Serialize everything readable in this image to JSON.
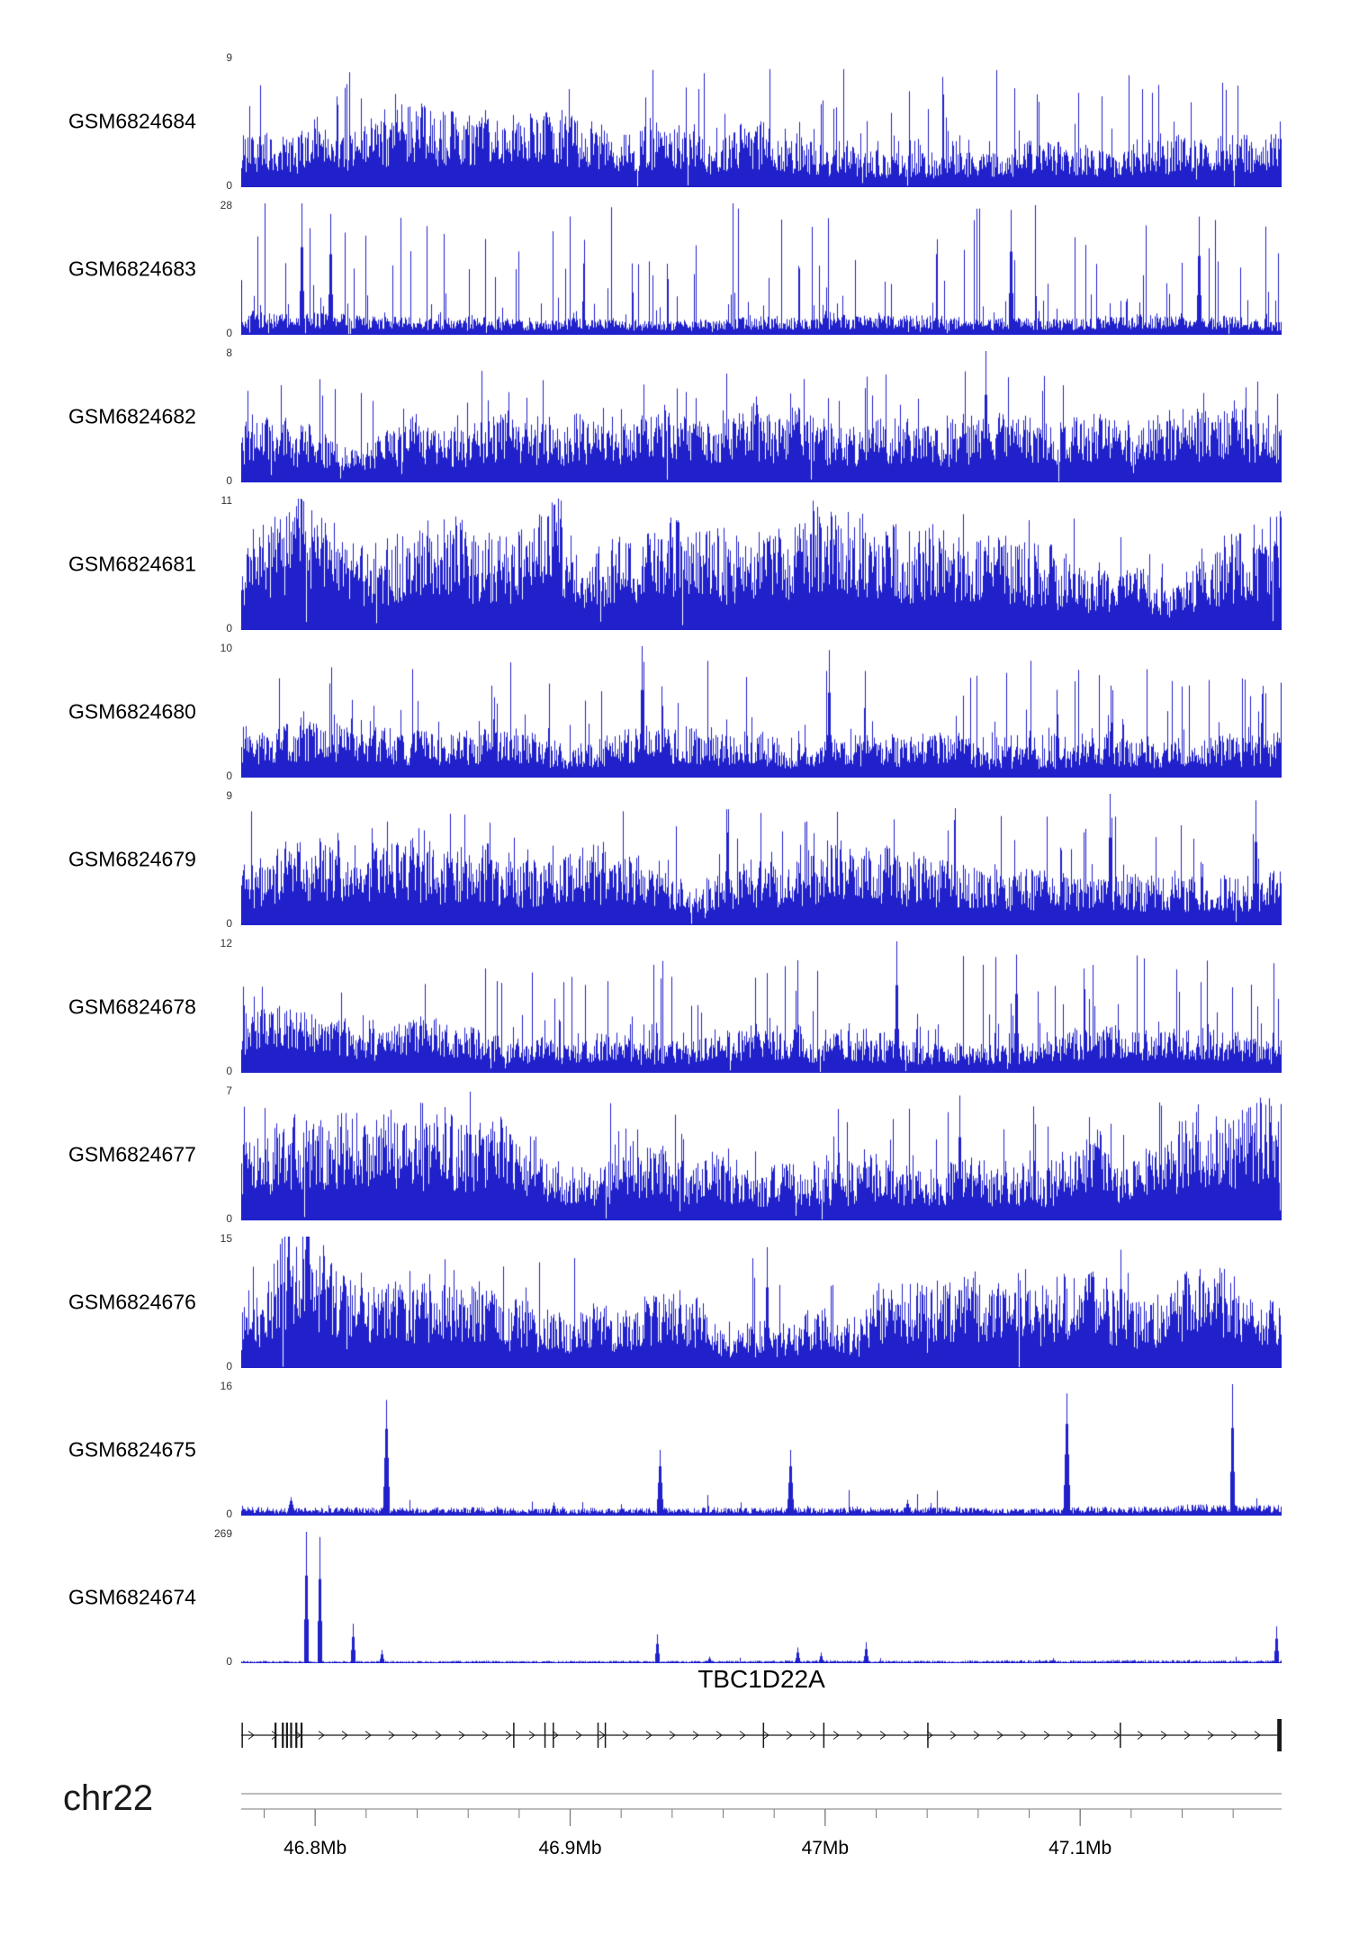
{
  "figure": {
    "background": "#FFFFFF",
    "track_color": "#2121CC",
    "gene_color": "#1A1A1A",
    "axis_line_color": "#7A7A7A",
    "text_color": "#000000",
    "yaxis_label_color": "#333333"
  },
  "chart_data": {
    "type": "area",
    "subtype": "genome-coverage-tracks",
    "title": "",
    "chromosome_label": "chr22",
    "x_axis": {
      "units": "Mb",
      "range_mb": [
        46.771,
        47.179
      ],
      "ticks": [
        {
          "label": "46.8Mb",
          "mb": 46.8
        },
        {
          "label": "46.9Mb",
          "mb": 46.9
        },
        {
          "label": "47Mb",
          "mb": 47.0
        },
        {
          "label": "47.1Mb",
          "mb": 47.1
        }
      ],
      "minor_tick_step_mb": 0.02
    },
    "gene_track": {
      "gene_name": "TBC1D22A",
      "strand": "+",
      "exons_frac": [
        0.001,
        0.033,
        0.04,
        0.044,
        0.048,
        0.053,
        0.058,
        0.262,
        0.292,
        0.3,
        0.343,
        0.35,
        0.502,
        0.56,
        0.66,
        0.845
      ],
      "end_block_frac": 0.998,
      "arrow_spacing_px": 26
    },
    "tracks": [
      {
        "name": "GSM6824684",
        "ymin": 0,
        "ymax": 9,
        "seed": 684,
        "base": 0.34,
        "walk": 0.1,
        "spike_prob": 0.1,
        "spike_base": 0.35,
        "spike_amp": 0.6,
        "spike_pow": 2,
        "gap_prob": 0.005,
        "bumps": [],
        "spikes": []
      },
      {
        "name": "GSM6824683",
        "ymin": 0,
        "ymax": 28,
        "seed": 683,
        "base": 0.13,
        "walk": 0.06,
        "spike_prob": 0.22,
        "spike_base": 0.1,
        "spike_amp": 0.92,
        "spike_pow": 3,
        "gap_prob": 0.01,
        "bumps": [],
        "spikes": [
          {
            "x": 0.058,
            "h": 1.0,
            "w": 2
          },
          {
            "x": 0.086,
            "h": 0.92,
            "w": 2
          },
          {
            "x": 0.74,
            "h": 0.95,
            "w": 2
          },
          {
            "x": 0.92,
            "h": 0.9,
            "w": 2
          }
        ]
      },
      {
        "name": "GSM6824682",
        "ymin": 0,
        "ymax": 8,
        "seed": 682,
        "base": 0.36,
        "walk": 0.1,
        "spike_prob": 0.1,
        "spike_base": 0.3,
        "spike_amp": 0.55,
        "spike_pow": 2,
        "gap_prob": 0.004,
        "bumps": [],
        "spikes": [
          {
            "x": 0.715,
            "h": 1.0,
            "w": 2
          }
        ]
      },
      {
        "name": "GSM6824681",
        "ymin": 0,
        "ymax": 11,
        "seed": 681,
        "base": 0.48,
        "walk": 0.14,
        "spike_prob": 0.08,
        "spike_base": 0.4,
        "spike_amp": 0.5,
        "spike_pow": 2,
        "gap_prob": 0.003,
        "bumps": [
          {
            "x": 0.055,
            "w": 0.02,
            "h": 0.25
          },
          {
            "x": 0.3,
            "w": 0.015,
            "h": 0.2
          },
          {
            "x": 0.55,
            "w": 0.015,
            "h": 0.18
          }
        ],
        "spikes": [
          {
            "x": 0.06,
            "h": 0.98,
            "w": 2
          },
          {
            "x": 0.3,
            "h": 0.95,
            "w": 2
          }
        ]
      },
      {
        "name": "GSM6824680",
        "ymin": 0,
        "ymax": 10,
        "seed": 680,
        "base": 0.3,
        "walk": 0.08,
        "spike_prob": 0.12,
        "spike_base": 0.3,
        "spike_amp": 0.6,
        "spike_pow": 2.5,
        "gap_prob": 0.004,
        "bumps": [],
        "spikes": [
          {
            "x": 0.385,
            "h": 1.0,
            "w": 2
          },
          {
            "x": 0.565,
            "h": 0.97,
            "w": 2
          }
        ]
      },
      {
        "name": "GSM6824679",
        "ymin": 0,
        "ymax": 9,
        "seed": 679,
        "base": 0.36,
        "walk": 0.09,
        "spike_prob": 0.1,
        "spike_base": 0.35,
        "spike_amp": 0.55,
        "spike_pow": 2,
        "gap_prob": 0.004,
        "bumps": [],
        "spikes": [
          {
            "x": 0.835,
            "h": 1.0,
            "w": 2
          },
          {
            "x": 0.975,
            "h": 0.95,
            "w": 2
          }
        ]
      },
      {
        "name": "GSM6824678",
        "ymin": 0,
        "ymax": 12,
        "seed": 678,
        "base": 0.3,
        "walk": 0.08,
        "spike_prob": 0.1,
        "spike_base": 0.3,
        "spike_amp": 0.6,
        "spike_pow": 2.5,
        "gap_prob": 0.004,
        "bumps": [],
        "spikes": [
          {
            "x": 0.63,
            "h": 1.0,
            "w": 2
          },
          {
            "x": 0.745,
            "h": 0.9,
            "w": 2
          }
        ]
      },
      {
        "name": "GSM6824677",
        "ymin": 0,
        "ymax": 7,
        "seed": 677,
        "base": 0.5,
        "walk": 0.1,
        "spike_prob": 0.08,
        "spike_base": 0.45,
        "spike_amp": 0.45,
        "spike_pow": 2,
        "gap_prob": 0.003,
        "bumps": [],
        "spikes": [
          {
            "x": 0.22,
            "h": 0.98,
            "w": 2
          },
          {
            "x": 0.69,
            "h": 0.95,
            "w": 2
          }
        ]
      },
      {
        "name": "GSM6824676",
        "ymin": 0,
        "ymax": 15,
        "seed": 676,
        "base": 0.4,
        "walk": 0.12,
        "spike_prob": 0.08,
        "spike_base": 0.35,
        "spike_amp": 0.5,
        "spike_pow": 2,
        "gap_prob": 0.003,
        "bumps": [
          {
            "x": 0.055,
            "w": 0.025,
            "h": 0.4
          }
        ],
        "spikes": [
          {
            "x": 0.065,
            "h": 0.98,
            "w": 3
          },
          {
            "x": 0.505,
            "h": 0.92,
            "w": 2
          },
          {
            "x": 0.845,
            "h": 0.9,
            "w": 2
          }
        ]
      },
      {
        "name": "GSM6824675",
        "ymin": 0,
        "ymax": 16,
        "seed": 675,
        "base": 0.06,
        "walk": 0.05,
        "spike_prob": 0.02,
        "spike_base": 0.05,
        "spike_amp": 0.15,
        "spike_pow": 2,
        "gap_prob": 0.0,
        "bumps": [],
        "spikes": [
          {
            "x": 0.048,
            "h": 0.14,
            "w": 4
          },
          {
            "x": 0.139,
            "h": 0.88,
            "w": 3
          },
          {
            "x": 0.3,
            "h": 0.1,
            "w": 3
          },
          {
            "x": 0.402,
            "h": 0.5,
            "w": 3
          },
          {
            "x": 0.528,
            "h": 0.5,
            "w": 3
          },
          {
            "x": 0.64,
            "h": 0.12,
            "w": 3
          },
          {
            "x": 0.793,
            "h": 0.93,
            "w": 3
          },
          {
            "x": 0.952,
            "h": 1.0,
            "w": 2
          }
        ]
      },
      {
        "name": "GSM6824674",
        "ymin": 0,
        "ymax": 269,
        "seed": 674,
        "base": 0.015,
        "walk": 0.03,
        "spike_prob": 0.004,
        "spike_base": 0.02,
        "spike_amp": 0.05,
        "spike_pow": 2,
        "gap_prob": 0.0,
        "bumps": [],
        "spikes": [
          {
            "x": 0.062,
            "h": 1.0,
            "w": 2
          },
          {
            "x": 0.075,
            "h": 0.96,
            "w": 2
          },
          {
            "x": 0.107,
            "h": 0.3,
            "w": 2
          },
          {
            "x": 0.135,
            "h": 0.1,
            "w": 2
          },
          {
            "x": 0.4,
            "h": 0.22,
            "w": 2
          },
          {
            "x": 0.45,
            "h": 0.05,
            "w": 2
          },
          {
            "x": 0.535,
            "h": 0.12,
            "w": 2
          },
          {
            "x": 0.557,
            "h": 0.08,
            "w": 2
          },
          {
            "x": 0.6,
            "h": 0.16,
            "w": 2
          },
          {
            "x": 0.995,
            "h": 0.28,
            "w": 2
          }
        ]
      }
    ]
  }
}
